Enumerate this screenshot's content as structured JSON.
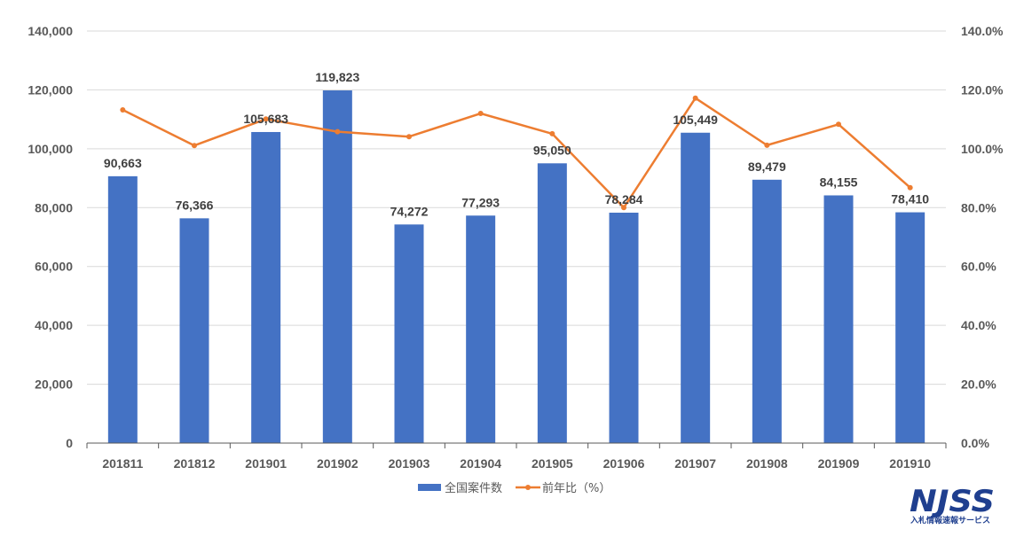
{
  "chart_data": {
    "type": "bar",
    "categories": [
      "201811",
      "201812",
      "201901",
      "201902",
      "201903",
      "201904",
      "201905",
      "201906",
      "201907",
      "201908",
      "201909",
      "201910"
    ],
    "series": [
      {
        "name": "全国案件数",
        "type": "bar",
        "values": [
          90663,
          76366,
          105683,
          119823,
          74272,
          77293,
          95050,
          78284,
          105449,
          89479,
          84155,
          78410
        ],
        "labels": [
          "90,663",
          "76,366",
          "105,683",
          "119,823",
          "74,272",
          "77,293",
          "95,050",
          "78,284",
          "105,449",
          "89,479",
          "84,155",
          "78,410"
        ]
      },
      {
        "name": "前年比（%）",
        "type": "line",
        "values": [
          113.2,
          101.1,
          110.1,
          105.8,
          104.1,
          112.0,
          105.1,
          80.0,
          117.2,
          101.2,
          108.3,
          86.8
        ]
      }
    ],
    "y_left": {
      "ylim": [
        0,
        140000
      ],
      "ticks": [
        "0",
        "20,000",
        "40,000",
        "60,000",
        "80,000",
        "100,000",
        "120,000",
        "140,000"
      ]
    },
    "y_right": {
      "ylim": [
        0,
        140
      ],
      "ticks": [
        "0.0%",
        "20.0%",
        "40.0%",
        "60.0%",
        "80.0%",
        "100.0%",
        "120.0%",
        "140.0%"
      ]
    },
    "grid": true,
    "legend_position": "bottom"
  },
  "colors": {
    "bar": "#4472c4",
    "line": "#ed7d31",
    "grid": "#d9d9d9",
    "axis": "#595959",
    "logo": "#1f3f8f"
  },
  "logo": {
    "name": "NJSS",
    "subtitle": "入札情報速報サービス"
  }
}
